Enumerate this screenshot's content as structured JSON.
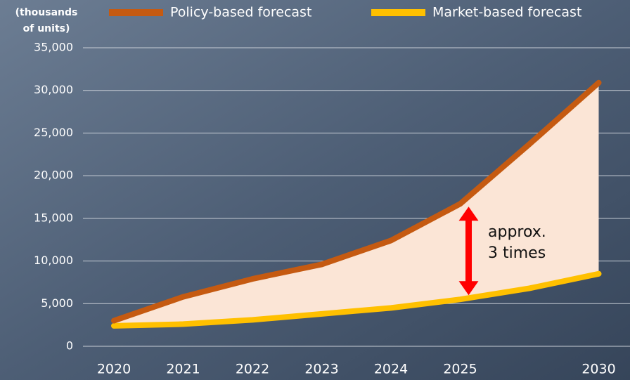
{
  "chart_data": {
    "type": "line",
    "y_label_lines": [
      "(thousands",
      "of units)"
    ],
    "categories": [
      "2020",
      "2021",
      "2022",
      "2023",
      "2024",
      "2025",
      null,
      "2030"
    ],
    "series": [
      {
        "name": "Policy-based forecast",
        "color": "#c55a11",
        "values": [
          3000,
          5800,
          7900,
          9600,
          12400,
          16700,
          23700,
          30900
        ]
      },
      {
        "name": "Market-based forecast",
        "color": "#ffc000",
        "values": [
          2400,
          2600,
          3100,
          3800,
          4500,
          5500,
          6800,
          8500
        ]
      }
    ],
    "annotation_lines": [
      "approx.",
      "3 times"
    ],
    "annotation_color": "#ff0000",
    "band_color": "#fbe5d6",
    "ylim": [
      0,
      35000
    ],
    "yticks": [
      0,
      {
        "value": 5000,
        "label": "5,000"
      },
      {
        "value": 10000,
        "label": "10,000"
      },
      {
        "value": 15000,
        "label": "15,000"
      },
      {
        "value": 20000,
        "label": "20,000"
      },
      {
        "value": 25000,
        "label": "25,000"
      },
      {
        "value": 30000,
        "label": "30,000"
      },
      {
        "value": 35000,
        "label": "35,000"
      }
    ],
    "grid": true
  }
}
